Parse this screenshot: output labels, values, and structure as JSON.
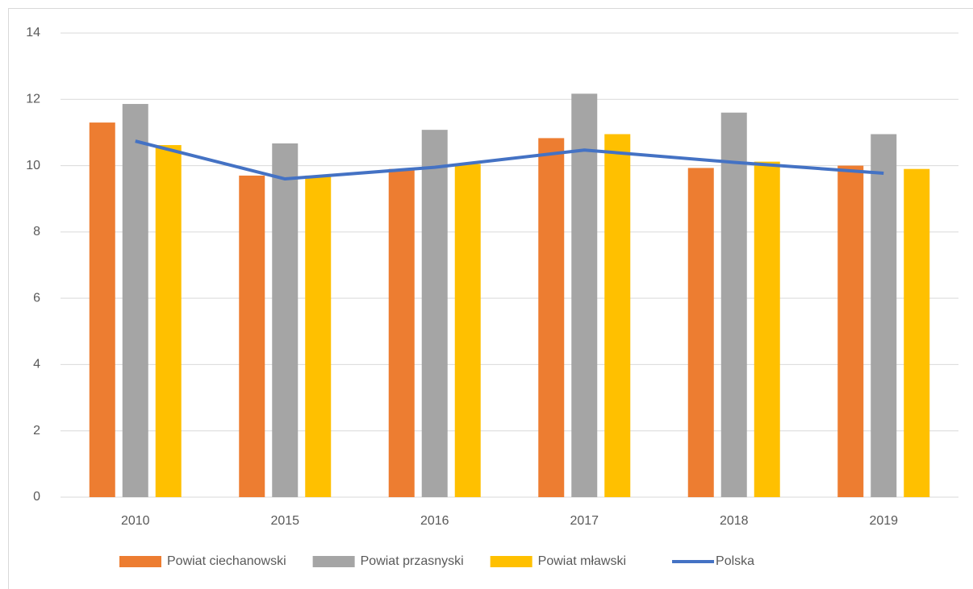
{
  "chart_data": {
    "type": "bar",
    "categories": [
      "2010",
      "2015",
      "2016",
      "2017",
      "2018",
      "2019"
    ],
    "series": [
      {
        "name": "Powiat ciechanowski",
        "color": "#ed7d31",
        "values": [
          11.3,
          9.7,
          9.9,
          10.83,
          9.93,
          10.0
        ]
      },
      {
        "name": "Powiat przasnyski",
        "color": "#a5a5a5",
        "values": [
          11.86,
          10.67,
          11.08,
          12.17,
          11.6,
          10.95
        ]
      },
      {
        "name": "Powiat mławski",
        "color": "#ffc000",
        "values": [
          10.62,
          9.7,
          10.05,
          10.95,
          10.12,
          9.9
        ]
      },
      {
        "name": "Polska",
        "color": "#4472c4",
        "type": "line",
        "values": [
          10.74,
          9.6,
          9.95,
          10.47,
          10.1,
          9.77
        ]
      }
    ],
    "ylim": [
      0,
      14
    ],
    "yticks": [
      0,
      2,
      4,
      6,
      8,
      10,
      12,
      14
    ],
    "grid": true,
    "legend": "bottom"
  }
}
